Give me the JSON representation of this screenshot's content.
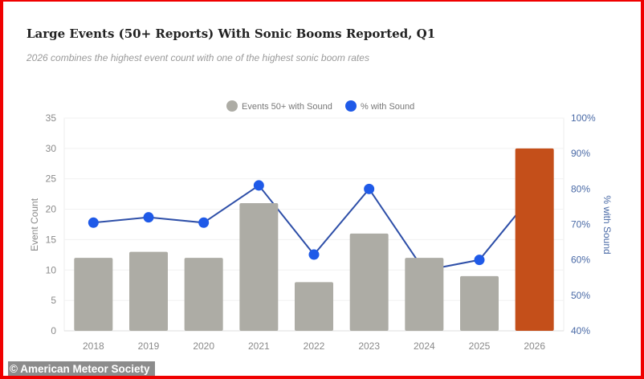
{
  "chart_data": {
    "type": "bar+line",
    "title": "Large Events (50+ Reports) With Sonic Booms Reported, Q1",
    "subtitle": "2026 combines the highest event count with one of the highest sonic boom rates",
    "categories": [
      "2018",
      "2019",
      "2020",
      "2021",
      "2022",
      "2023",
      "2024",
      "2025",
      "2026"
    ],
    "series": [
      {
        "name": "Events 50+ with Sound",
        "type": "bar",
        "axis": "left",
        "values": [
          12,
          13,
          12,
          21,
          8,
          16,
          12,
          9,
          30
        ],
        "color": "#adaca5",
        "highlight": {
          "2026": "#c44f1a"
        }
      },
      {
        "name": "% with Sound",
        "type": "line",
        "axis": "right",
        "values": [
          70.5,
          72,
          70.5,
          81,
          61.5,
          80,
          57,
          60,
          79
        ],
        "color": "#1f5ae8",
        "line_color": "#2e4fa8"
      }
    ],
    "ylabel": "Event Count",
    "ylim": [
      0,
      35
    ],
    "yticks": [
      "0",
      "5",
      "10",
      "15",
      "20",
      "25",
      "30",
      "35"
    ],
    "y2label": "% with Sound",
    "y2lim": [
      40,
      100
    ],
    "y2ticks": [
      "40%",
      "50%",
      "60%",
      "70%",
      "80%",
      "90%",
      "100%"
    ],
    "grid": true,
    "legend": "top-center"
  },
  "credit": "© American Meteor Society"
}
